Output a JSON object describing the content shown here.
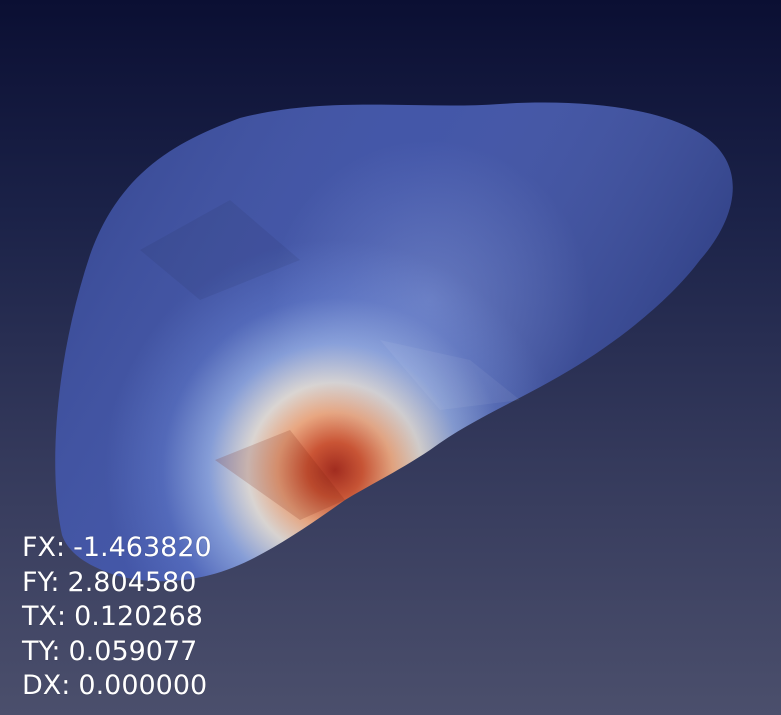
{
  "viewport": {
    "object_icon": "liver-mesh-icon",
    "colors": {
      "background_top": "#0b0f33",
      "background_bottom": "#4b4f6c",
      "surface_low": "#3b4fa6",
      "surface_mid": "#d9d2cc",
      "surface_high": "#b32b18"
    }
  },
  "readout": [
    {
      "label": "FX:",
      "value": "-1.463820"
    },
    {
      "label": "FY:",
      "value": "2.804580"
    },
    {
      "label": "TX:",
      "value": "0.120268"
    },
    {
      "label": "TY:",
      "value": "0.059077"
    },
    {
      "label": "DX:",
      "value": "0.000000"
    }
  ]
}
